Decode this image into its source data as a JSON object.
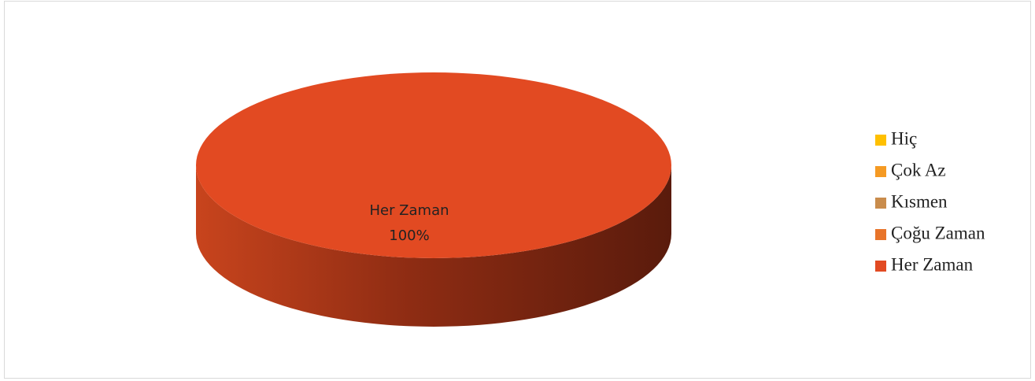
{
  "chart_data": {
    "type": "pie",
    "categories": [
      "Hiç",
      "Çok Az",
      "Kısmen",
      "Çoğu Zaman",
      "Her Zaman"
    ],
    "values": [
      0,
      0,
      0,
      0,
      100
    ],
    "value_labels": [
      null,
      null,
      null,
      null,
      "100%"
    ],
    "colors": [
      "#ffc000",
      "#f59a23",
      "#c98c4c",
      "#e8742a",
      "#e24a22"
    ],
    "legend": "right"
  }
}
